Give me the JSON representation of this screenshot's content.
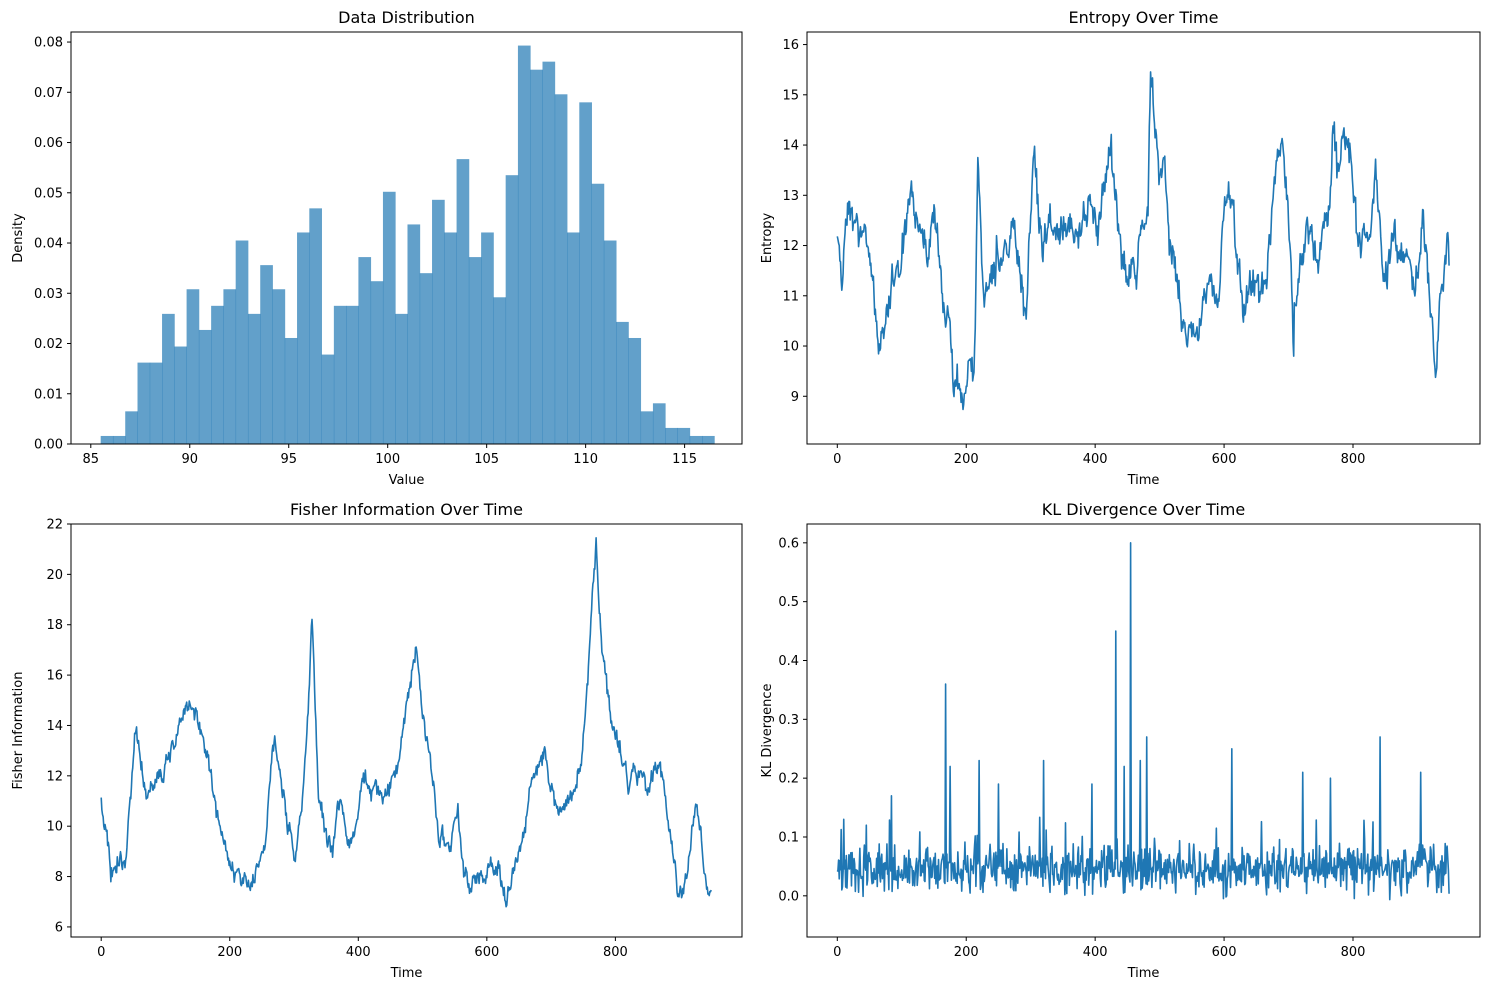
{
  "colors": {
    "hist": "#1f77b4",
    "line": "#1f77b4"
  },
  "chart_data": [
    {
      "type": "bar",
      "title": "Data Distribution",
      "xlabel": "Value",
      "ylabel": "Density",
      "xlim": [
        84.0,
        117.9
      ],
      "ylim": [
        0,
        0.082
      ],
      "xticks": [
        85,
        90,
        95,
        100,
        105,
        110,
        115
      ],
      "yticks": [
        0.0,
        0.01,
        0.02,
        0.03,
        0.04,
        0.05,
        0.06,
        0.07,
        0.08
      ],
      "ytick_labels": [
        "0.00",
        "0.01",
        "0.02",
        "0.03",
        "0.04",
        "0.05",
        "0.06",
        "0.07",
        "0.08"
      ],
      "bin_start": 85.5,
      "bin_width": 0.62,
      "values": [
        0.0016,
        0.0016,
        0.0065,
        0.0162,
        0.0162,
        0.0259,
        0.0194,
        0.0308,
        0.0227,
        0.0275,
        0.0308,
        0.0405,
        0.0259,
        0.0356,
        0.0308,
        0.0211,
        0.0421,
        0.0469,
        0.0178,
        0.0275,
        0.0275,
        0.0372,
        0.0324,
        0.0502,
        0.0259,
        0.0437,
        0.034,
        0.0486,
        0.0421,
        0.0567,
        0.0372,
        0.0421,
        0.0292,
        0.0535,
        0.0793,
        0.0745,
        0.0761,
        0.0696,
        0.0421,
        0.068,
        0.0518,
        0.0405,
        0.0243,
        0.0211,
        0.0065,
        0.0081,
        0.0032,
        0.0032,
        0.0016,
        0.0016
      ],
      "alpha": 0.7
    },
    {
      "type": "line",
      "title": "Entropy Over Time",
      "xlabel": "Time",
      "ylabel": "Entropy",
      "xlim": [
        -47,
        997
      ],
      "ylim": [
        8.05,
        16.25
      ],
      "xticks": [
        0,
        200,
        400,
        600,
        800
      ],
      "yticks": [
        9,
        10,
        11,
        12,
        13,
        14,
        15,
        16
      ],
      "ytick_labels": [
        "9",
        "10",
        "11",
        "12",
        "13",
        "14",
        "15",
        "16"
      ],
      "series": [
        {
          "anchors_x": [
            0,
            8,
            14,
            22,
            30,
            42,
            55,
            64,
            72,
            85,
            100,
            115,
            125,
            140,
            150,
            160,
            168,
            174,
            180,
            190,
            196,
            205,
            212,
            218,
            228,
            240,
            255,
            270,
            285,
            295,
            305,
            318,
            330,
            345,
            360,
            375,
            390,
            405,
            418,
            425,
            432,
            440,
            452,
            465,
            475,
            482,
            486,
            492,
            500,
            508,
            515,
            525,
            540,
            560,
            575,
            590,
            600,
            612,
            622,
            630,
            645,
            660,
            672,
            682,
            690,
            700,
            708,
            718,
            730,
            745,
            760,
            770,
            778,
            788,
            798,
            812,
            825,
            835,
            848,
            860,
            880,
            895,
            908,
            920,
            928,
            935,
            945
          ],
          "anchors_y": [
            12.3,
            11.4,
            13.1,
            12.6,
            11.9,
            12.6,
            11.2,
            9.4,
            10.6,
            11.3,
            11.8,
            12.9,
            12.5,
            12.2,
            12.7,
            11.6,
            10.3,
            10.6,
            9.2,
            9.3,
            8.5,
            9.8,
            9.6,
            13.1,
            10.9,
            11.5,
            11.8,
            12.6,
            11.1,
            11.3,
            13.8,
            11.6,
            12.2,
            12.4,
            12.8,
            12.5,
            12.9,
            12.1,
            13.6,
            14.2,
            13.4,
            11.9,
            11.7,
            11.6,
            12.4,
            13.2,
            15.9,
            14.5,
            13.8,
            13.9,
            11.8,
            11.8,
            10.5,
            10.1,
            11.5,
            11.3,
            12.4,
            13.1,
            11.4,
            10.6,
            11.1,
            11.0,
            12.4,
            13.6,
            14.3,
            12.8,
            10.1,
            11.8,
            12.0,
            12.1,
            12.3,
            14.2,
            13.8,
            14.2,
            13.6,
            12.3,
            11.8,
            13.6,
            11.3,
            11.9,
            11.5,
            11.2,
            12.9,
            10.6,
            9.7,
            11.0,
            11.8
          ],
          "noise": 0.32,
          "jump_prob": 0.07,
          "seed": 101
        }
      ]
    },
    {
      "type": "line",
      "title": "Fisher Information Over Time",
      "xlabel": "Time",
      "ylabel": "Fisher Information",
      "xlim": [
        -47,
        997
      ],
      "ylim": [
        5.6,
        22.0
      ],
      "xticks": [
        0,
        200,
        400,
        600,
        800
      ],
      "yticks": [
        6,
        8,
        10,
        12,
        14,
        16,
        18,
        20,
        22
      ],
      "ytick_labels": [
        "6",
        "8",
        "10",
        "12",
        "14",
        "16",
        "18",
        "20",
        "22"
      ],
      "series": [
        {
          "anchors_x": [
            0,
            8,
            15,
            25,
            40,
            55,
            70,
            85,
            100,
            115,
            128,
            140,
            152,
            165,
            180,
            195,
            210,
            225,
            240,
            255,
            270,
            285,
            300,
            312,
            322,
            328,
            338,
            350,
            360,
            372,
            382,
            395,
            410,
            425,
            440,
            455,
            470,
            485,
            490,
            500,
            512,
            525,
            540,
            555,
            565,
            575,
            590,
            605,
            620,
            630,
            645,
            660,
            675,
            690,
            700,
            712,
            725,
            740,
            752,
            762,
            770,
            778,
            790,
            805,
            820,
            835,
            848,
            860,
            875,
            888,
            900,
            912,
            925,
            945
          ],
          "anchors_y": [
            11.2,
            10.0,
            8.4,
            8.7,
            9.2,
            14.2,
            11.3,
            12.2,
            12.6,
            13.6,
            14.8,
            15.2,
            14.0,
            12.5,
            10.5,
            8.8,
            8.0,
            7.8,
            7.9,
            10.0,
            13.5,
            11.0,
            8.5,
            10.5,
            14.5,
            18.0,
            11.5,
            9.5,
            8.6,
            11.0,
            9.5,
            9.6,
            11.8,
            11.3,
            10.9,
            11.4,
            13.7,
            16.3,
            16.9,
            14.5,
            12.5,
            9.7,
            8.8,
            10.3,
            8.0,
            7.8,
            8.4,
            8.7,
            8.2,
            6.6,
            8.6,
            10.4,
            12.8,
            12.9,
            11.9,
            10.6,
            10.8,
            11.8,
            13.8,
            18.2,
            21.2,
            17.5,
            15.0,
            13.3,
            11.9,
            12.0,
            11.2,
            12.5,
            11.6,
            9.5,
            7.5,
            8.0,
            11.1,
            7.5
          ],
          "noise": 0.38,
          "jump_prob": 0.0,
          "seed": 202
        }
      ]
    },
    {
      "type": "line",
      "title": "KL Divergence Over Time",
      "xlabel": "Time",
      "ylabel": "KL Divergence",
      "xlim": [
        -47,
        997
      ],
      "ylim": [
        -0.07,
        0.632
      ],
      "xticks": [
        0,
        200,
        400,
        600,
        800
      ],
      "yticks": [
        0.0,
        0.1,
        0.2,
        0.3,
        0.4,
        0.5,
        0.6
      ],
      "ytick_labels": [
        "0.0",
        "0.1",
        "0.2",
        "0.3",
        "0.4",
        "0.5",
        "0.6"
      ],
      "series": [
        {
          "baseline": 0.045,
          "noise": 0.032,
          "spikes_x": [
            10,
            45,
            84,
            168,
            175,
            220,
            250,
            320,
            395,
            432,
            445,
            455,
            470,
            480,
            612,
            722,
            765,
            842,
            905
          ],
          "spikes_y": [
            0.13,
            0.12,
            0.17,
            0.36,
            0.22,
            0.23,
            0.19,
            0.23,
            0.19,
            0.45,
            0.22,
            0.6,
            0.23,
            0.27,
            0.25,
            0.21,
            0.2,
            0.27,
            0.21
          ],
          "seed": 303
        }
      ]
    }
  ]
}
